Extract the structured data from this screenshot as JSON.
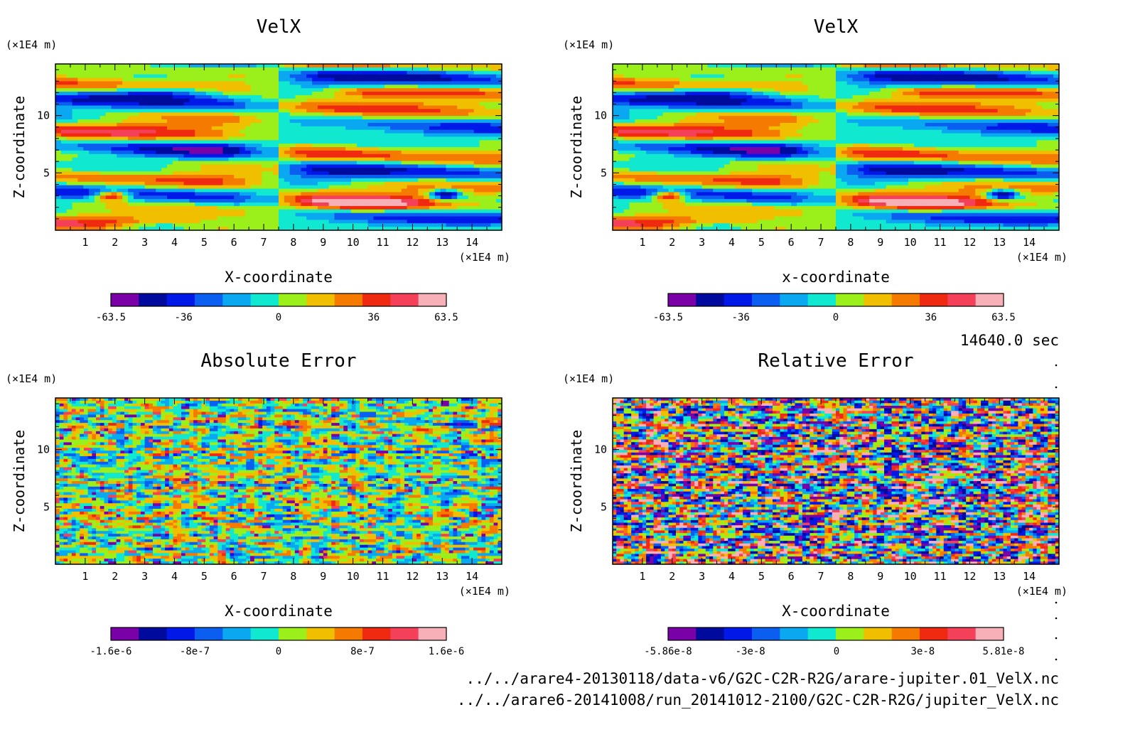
{
  "chart_data": [
    {
      "type": "heatmap",
      "title": "VelX",
      "xlabel": "X-coordinate",
      "ylabel": "Z-coordinate",
      "x_unit": "(×1E4 m)",
      "y_unit": "(×1E4 m)",
      "xlim": [
        0,
        15
      ],
      "ylim": [
        0,
        14.5
      ],
      "x_ticks": [
        "1",
        "2",
        "3",
        "4",
        "5",
        "6",
        "7",
        "8",
        "9",
        "10",
        "11",
        "12",
        "13",
        "14"
      ],
      "y_ticks": [
        "5",
        "10"
      ],
      "colorbar_labels": [
        "-63.5",
        "-36",
        "0",
        "36",
        "63.5"
      ],
      "colorbar_range": [
        -63.5,
        63.5
      ],
      "pattern": "smooth horizontal bands"
    },
    {
      "type": "heatmap",
      "title": "VelX",
      "xlabel": "x-coordinate",
      "ylabel": "Z-coordinate",
      "x_unit": "(×1E4 m)",
      "y_unit": "(×1E4 m)",
      "xlim": [
        0,
        15
      ],
      "ylim": [
        0,
        14.5
      ],
      "x_ticks": [
        "1",
        "2",
        "3",
        "4",
        "5",
        "6",
        "7",
        "8",
        "9",
        "10",
        "11",
        "12",
        "13",
        "14"
      ],
      "y_ticks": [
        "5",
        "10"
      ],
      "colorbar_labels": [
        "-63.5",
        "-36",
        "0",
        "36",
        "63.5"
      ],
      "colorbar_range": [
        -63.5,
        63.5
      ],
      "pattern": "smooth horizontal bands"
    },
    {
      "type": "heatmap",
      "title": "Absolute Error",
      "xlabel": "X-coordinate",
      "ylabel": "Z-coordinate",
      "x_unit": "(×1E4 m)",
      "y_unit": "(×1E4 m)",
      "xlim": [
        0,
        15
      ],
      "ylim": [
        0,
        14.5
      ],
      "x_ticks": [
        "1",
        "2",
        "3",
        "4",
        "5",
        "6",
        "7",
        "8",
        "9",
        "10",
        "11",
        "12",
        "13",
        "14"
      ],
      "y_ticks": [
        "5",
        "10"
      ],
      "colorbar_labels": [
        "-1.6e-6",
        "-8e-7",
        "0",
        "8e-7",
        "1.6e-6"
      ],
      "colorbar_range": [
        -1.6e-06,
        1.6e-06
      ],
      "pattern": "noise, mostly near zero"
    },
    {
      "type": "heatmap",
      "title": "Relative Error",
      "xlabel": "X-coordinate",
      "ylabel": "Z-coordinate",
      "x_unit": "(×1E4 m)",
      "y_unit": "(×1E4 m)",
      "xlim": [
        0,
        15
      ],
      "ylim": [
        0,
        14.5
      ],
      "x_ticks": [
        "1",
        "2",
        "3",
        "4",
        "5",
        "6",
        "7",
        "8",
        "9",
        "10",
        "11",
        "12",
        "13",
        "14"
      ],
      "y_ticks": [
        "5",
        "10"
      ],
      "colorbar_labels": [
        "-5.86e-8",
        "-3e-8",
        "0",
        "3e-8",
        "5.81e-8"
      ],
      "colorbar_range": [
        -5.86e-08,
        5.81e-08
      ],
      "pattern": "high-contrast noise"
    }
  ],
  "colormap": [
    "#7a00a8",
    "#000a9c",
    "#0019e8",
    "#0a5ef0",
    "#0aa8f0",
    "#10e8d0",
    "#9bef1a",
    "#f0c000",
    "#f57a00",
    "#f02a10",
    "#f5405a",
    "#f8b0b8"
  ],
  "time_label": "14640.0 sec",
  "files": [
    "../../arare4-20130118/data-v6/G2C-C2R-R2G/arare-jupiter.01_VelX.nc",
    "../../arare6-20141008/run_20141012-2100/G2C-C2R-R2G/jupiter_VelX.nc"
  ]
}
